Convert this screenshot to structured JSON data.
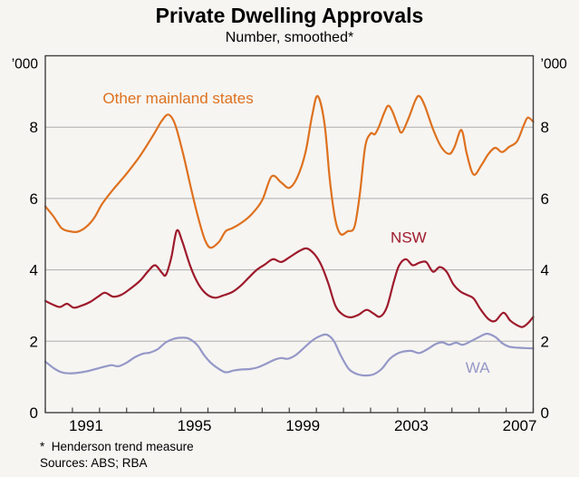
{
  "title": "Private Dwelling Approvals",
  "subtitle": "Number, smoothed*",
  "footnotes": [
    "*  Henderson trend measure",
    "Sources: ABS; RBA"
  ],
  "colors": {
    "background": "#f6f5f2",
    "frame": "#404040",
    "gridline": "#adadad",
    "text": "#000000",
    "orange": "#de711f",
    "dark_red": "#9e1a2b",
    "lavender": "#9598c7"
  },
  "chart_data": {
    "type": "line",
    "title": "Private Dwelling Approvals",
    "subtitle": "Number, smoothed*",
    "unit_label": "’000",
    "grid": "horizontal",
    "x_axis": {
      "min": 1990,
      "max": 2008,
      "tick_interval": 1,
      "labeled_years": [
        1991,
        1995,
        1999,
        2003,
        2007
      ]
    },
    "y_axis": {
      "min": 0,
      "max": 10,
      "gridlines": [
        2,
        4,
        6,
        8
      ],
      "tick_labels": [
        0,
        2,
        4,
        6,
        8
      ],
      "both_sides": true
    },
    "series": [
      {
        "name": "Other mainland states",
        "color": "#de711f",
        "label_pos": {
          "x": 1994.9,
          "y": 8.82
        },
        "points": [
          [
            1990.0,
            5.78
          ],
          [
            1990.3,
            5.5
          ],
          [
            1990.6,
            5.17
          ],
          [
            1990.9,
            5.08
          ],
          [
            1991.2,
            5.07
          ],
          [
            1991.5,
            5.2
          ],
          [
            1991.8,
            5.45
          ],
          [
            1992.1,
            5.85
          ],
          [
            1992.5,
            6.25
          ],
          [
            1993.0,
            6.7
          ],
          [
            1993.5,
            7.2
          ],
          [
            1994.0,
            7.8
          ],
          [
            1994.3,
            8.18
          ],
          [
            1994.55,
            8.35
          ],
          [
            1994.8,
            8.05
          ],
          [
            1995.1,
            7.2
          ],
          [
            1995.4,
            6.2
          ],
          [
            1995.7,
            5.3
          ],
          [
            1995.9,
            4.82
          ],
          [
            1996.1,
            4.62
          ],
          [
            1996.4,
            4.78
          ],
          [
            1996.65,
            5.08
          ],
          [
            1996.9,
            5.17
          ],
          [
            1997.2,
            5.3
          ],
          [
            1997.6,
            5.55
          ],
          [
            1998.0,
            5.95
          ],
          [
            1998.35,
            6.62
          ],
          [
            1998.7,
            6.45
          ],
          [
            1999.0,
            6.3
          ],
          [
            1999.3,
            6.6
          ],
          [
            1999.6,
            7.3
          ],
          [
            1999.85,
            8.35
          ],
          [
            2000.05,
            8.87
          ],
          [
            2000.3,
            8.1
          ],
          [
            2000.5,
            6.5
          ],
          [
            2000.7,
            5.4
          ],
          [
            2000.9,
            5.0
          ],
          [
            2001.15,
            5.08
          ],
          [
            2001.4,
            5.2
          ],
          [
            2001.6,
            6.1
          ],
          [
            2001.8,
            7.45
          ],
          [
            2002.0,
            7.82
          ],
          [
            2002.15,
            7.8
          ],
          [
            2002.3,
            8.0
          ],
          [
            2002.5,
            8.4
          ],
          [
            2002.65,
            8.6
          ],
          [
            2002.8,
            8.45
          ],
          [
            2003.0,
            8.05
          ],
          [
            2003.15,
            7.85
          ],
          [
            2003.4,
            8.25
          ],
          [
            2003.65,
            8.75
          ],
          [
            2003.8,
            8.87
          ],
          [
            2004.0,
            8.6
          ],
          [
            2004.3,
            7.95
          ],
          [
            2004.6,
            7.45
          ],
          [
            2004.9,
            7.25
          ],
          [
            2005.1,
            7.45
          ],
          [
            2005.35,
            7.92
          ],
          [
            2005.55,
            7.25
          ],
          [
            2005.8,
            6.67
          ],
          [
            2006.1,
            6.95
          ],
          [
            2006.35,
            7.25
          ],
          [
            2006.6,
            7.42
          ],
          [
            2006.85,
            7.3
          ],
          [
            2007.1,
            7.44
          ],
          [
            2007.4,
            7.6
          ],
          [
            2007.65,
            8.05
          ],
          [
            2007.8,
            8.27
          ],
          [
            2008.0,
            8.15
          ]
        ]
      },
      {
        "name": "NSW",
        "color": "#9e1a2b",
        "label_pos": {
          "x": 2003.4,
          "y": 4.92
        },
        "points": [
          [
            1990.0,
            3.13
          ],
          [
            1990.3,
            3.02
          ],
          [
            1990.55,
            2.96
          ],
          [
            1990.8,
            3.05
          ],
          [
            1991.05,
            2.94
          ],
          [
            1991.35,
            3.0
          ],
          [
            1991.65,
            3.1
          ],
          [
            1991.95,
            3.25
          ],
          [
            1992.2,
            3.36
          ],
          [
            1992.5,
            3.25
          ],
          [
            1992.8,
            3.3
          ],
          [
            1993.1,
            3.45
          ],
          [
            1993.5,
            3.7
          ],
          [
            1993.8,
            3.97
          ],
          [
            1994.05,
            4.13
          ],
          [
            1994.3,
            3.92
          ],
          [
            1994.45,
            3.86
          ],
          [
            1994.65,
            4.35
          ],
          [
            1994.85,
            5.1
          ],
          [
            1995.05,
            4.8
          ],
          [
            1995.35,
            4.1
          ],
          [
            1995.65,
            3.6
          ],
          [
            1995.95,
            3.32
          ],
          [
            1996.25,
            3.22
          ],
          [
            1996.55,
            3.28
          ],
          [
            1996.9,
            3.38
          ],
          [
            1997.2,
            3.55
          ],
          [
            1997.5,
            3.78
          ],
          [
            1997.8,
            4.0
          ],
          [
            1998.1,
            4.15
          ],
          [
            1998.4,
            4.3
          ],
          [
            1998.7,
            4.22
          ],
          [
            1999.0,
            4.35
          ],
          [
            1999.35,
            4.52
          ],
          [
            1999.65,
            4.6
          ],
          [
            1999.95,
            4.42
          ],
          [
            2000.2,
            4.1
          ],
          [
            2000.45,
            3.6
          ],
          [
            2000.7,
            3.0
          ],
          [
            2000.95,
            2.76
          ],
          [
            2001.25,
            2.67
          ],
          [
            2001.55,
            2.74
          ],
          [
            2001.85,
            2.88
          ],
          [
            2002.1,
            2.78
          ],
          [
            2002.35,
            2.69
          ],
          [
            2002.6,
            2.95
          ],
          [
            2002.85,
            3.65
          ],
          [
            2003.05,
            4.12
          ],
          [
            2003.3,
            4.3
          ],
          [
            2003.55,
            4.13
          ],
          [
            2003.8,
            4.2
          ],
          [
            2004.05,
            4.22
          ],
          [
            2004.3,
            3.95
          ],
          [
            2004.55,
            4.08
          ],
          [
            2004.8,
            3.95
          ],
          [
            2005.05,
            3.6
          ],
          [
            2005.3,
            3.4
          ],
          [
            2005.55,
            3.3
          ],
          [
            2005.8,
            3.2
          ],
          [
            2006.05,
            2.9
          ],
          [
            2006.35,
            2.62
          ],
          [
            2006.6,
            2.57
          ],
          [
            2006.9,
            2.8
          ],
          [
            2007.15,
            2.58
          ],
          [
            2007.4,
            2.45
          ],
          [
            2007.6,
            2.4
          ],
          [
            2007.8,
            2.5
          ],
          [
            2008.0,
            2.68
          ]
        ]
      },
      {
        "name": "WA",
        "color": "#9598c7",
        "label_pos": {
          "x": 2005.95,
          "y": 1.27
        },
        "points": [
          [
            1990.0,
            1.43
          ],
          [
            1990.3,
            1.25
          ],
          [
            1990.6,
            1.13
          ],
          [
            1990.9,
            1.1
          ],
          [
            1991.25,
            1.12
          ],
          [
            1991.6,
            1.17
          ],
          [
            1991.95,
            1.24
          ],
          [
            1992.25,
            1.3
          ],
          [
            1992.45,
            1.33
          ],
          [
            1992.7,
            1.3
          ],
          [
            1993.0,
            1.4
          ],
          [
            1993.3,
            1.55
          ],
          [
            1993.6,
            1.65
          ],
          [
            1993.85,
            1.68
          ],
          [
            1994.15,
            1.78
          ],
          [
            1994.45,
            1.97
          ],
          [
            1994.75,
            2.07
          ],
          [
            1995.05,
            2.1
          ],
          [
            1995.3,
            2.07
          ],
          [
            1995.6,
            1.9
          ],
          [
            1995.85,
            1.62
          ],
          [
            1996.1,
            1.4
          ],
          [
            1996.35,
            1.25
          ],
          [
            1996.65,
            1.13
          ],
          [
            1996.95,
            1.18
          ],
          [
            1997.25,
            1.21
          ],
          [
            1997.55,
            1.22
          ],
          [
            1997.85,
            1.27
          ],
          [
            1998.15,
            1.37
          ],
          [
            1998.45,
            1.48
          ],
          [
            1998.7,
            1.53
          ],
          [
            1998.95,
            1.51
          ],
          [
            1999.25,
            1.62
          ],
          [
            1999.55,
            1.82
          ],
          [
            1999.85,
            2.02
          ],
          [
            2000.15,
            2.15
          ],
          [
            2000.4,
            2.18
          ],
          [
            2000.65,
            2.0
          ],
          [
            2000.9,
            1.6
          ],
          [
            2001.2,
            1.22
          ],
          [
            2001.5,
            1.08
          ],
          [
            2001.8,
            1.04
          ],
          [
            2002.1,
            1.07
          ],
          [
            2002.4,
            1.22
          ],
          [
            2002.7,
            1.5
          ],
          [
            2002.95,
            1.64
          ],
          [
            2003.2,
            1.71
          ],
          [
            2003.5,
            1.73
          ],
          [
            2003.8,
            1.67
          ],
          [
            2004.1,
            1.78
          ],
          [
            2004.4,
            1.92
          ],
          [
            2004.65,
            1.97
          ],
          [
            2004.9,
            1.9
          ],
          [
            2005.15,
            1.96
          ],
          [
            2005.4,
            1.9
          ],
          [
            2005.7,
            2.0
          ],
          [
            2006.0,
            2.12
          ],
          [
            2006.3,
            2.21
          ],
          [
            2006.6,
            2.12
          ],
          [
            2006.85,
            1.95
          ],
          [
            2007.1,
            1.85
          ],
          [
            2007.4,
            1.82
          ],
          [
            2007.7,
            1.81
          ],
          [
            2008.0,
            1.8
          ]
        ]
      }
    ]
  }
}
